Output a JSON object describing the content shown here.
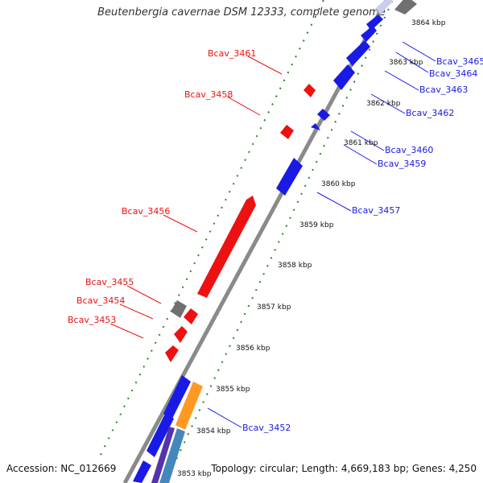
{
  "title": "Beutenbergia cavernae DSM 12333, complete genome",
  "accession_label": "Accession: NC_012669",
  "topology_label": "Topology: circular; Length: 4,669,183 bp; Genes: 4,250",
  "colors": {
    "forward": "#ee1111",
    "reverse": "#1a1ae6",
    "gray": "#707070",
    "orange": "#ff9922",
    "teal": "#4488bb",
    "tick": "#228822"
  },
  "kbp_ticks": [
    "3853 kbp",
    "3854 kbp",
    "3855 kbp",
    "3856 kbp",
    "3857 kbp",
    "3858 kbp",
    "3859 kbp",
    "3860 kbp",
    "3861 kbp",
    "3862 kbp",
    "3863 kbp",
    "3864 kbp"
  ],
  "labels_left": [
    "Bcav_3461",
    "Bcav_3458",
    "Bcav_3456",
    "Bcav_3455",
    "Bcav_3454",
    "Bcav_3453"
  ],
  "labels_right": [
    "Bcav_3465",
    "Bcav_3464",
    "Bcav_3463",
    "Bcav_3462",
    "Bcav_3460",
    "Bcav_3459",
    "Bcav_3457",
    "Bcav_3452"
  ]
}
